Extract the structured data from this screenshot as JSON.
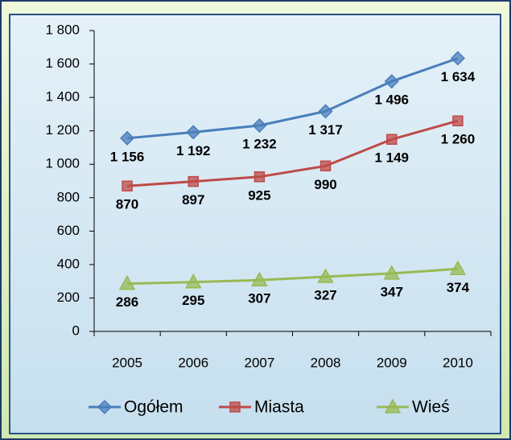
{
  "chart_data": {
    "type": "line",
    "categories": [
      "2005",
      "2006",
      "2007",
      "2008",
      "2009",
      "2010"
    ],
    "series": [
      {
        "name": "Ogółem",
        "color": "#4a7ebb",
        "marker": "diamond",
        "values": [
          1156,
          1192,
          1232,
          1317,
          1496,
          1634
        ],
        "value_labels": [
          "1 156",
          "1 192",
          "1 232",
          "1 317",
          "1 496",
          "1 634"
        ]
      },
      {
        "name": "Miasta",
        "color": "#be4b48",
        "marker": "square",
        "values": [
          870,
          897,
          925,
          990,
          1149,
          1260
        ],
        "value_labels": [
          "870",
          "897",
          "925",
          "990",
          "1 149",
          "1 260"
        ]
      },
      {
        "name": "Wieś",
        "color": "#98b954",
        "marker": "triangle",
        "values": [
          286,
          295,
          307,
          327,
          347,
          374
        ],
        "value_labels": [
          "286",
          "295",
          "307",
          "327",
          "347",
          "374"
        ]
      }
    ],
    "ylim": [
      0,
      1800
    ],
    "yticks": [
      0,
      200,
      400,
      600,
      800,
      {
        "value": 1000,
        "label": "1 000"
      },
      {
        "value": 1200,
        "label": "1 200"
      },
      {
        "value": 1400,
        "label": "1 400"
      },
      {
        "value": 1600,
        "label": "1 600"
      },
      {
        "value": 1800,
        "label": "1 800"
      }
    ],
    "legend": "bottom"
  }
}
